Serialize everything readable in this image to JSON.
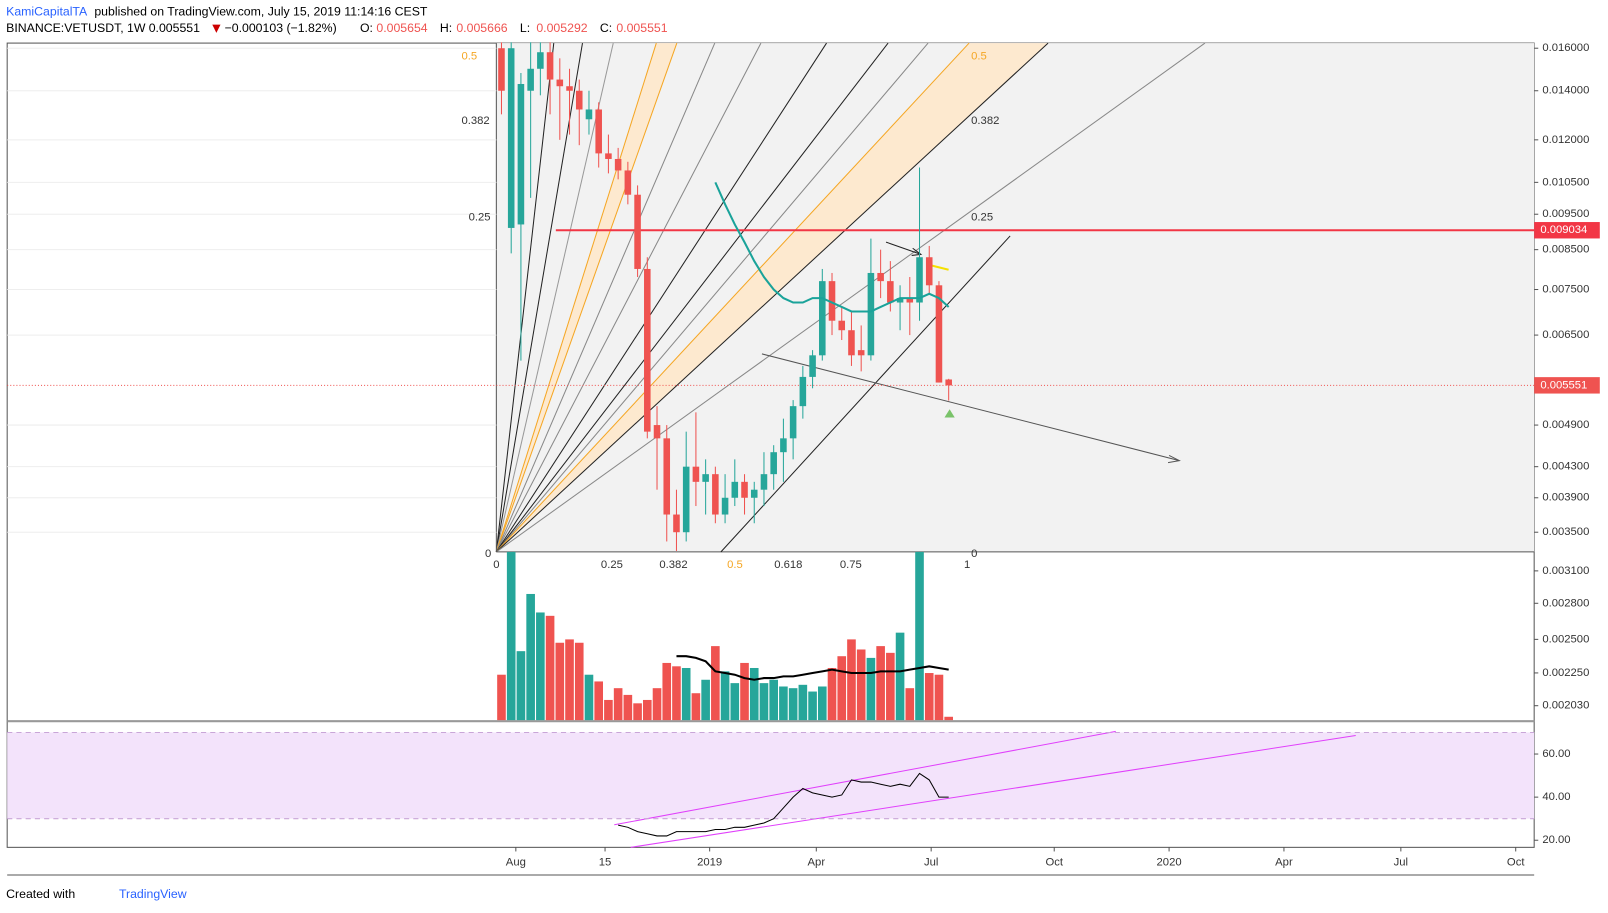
{
  "header": {
    "author": "KamiCapitalTA",
    "published": "published on TradingView.com, July 15, 2019 11:14:16 CEST",
    "symbol": "BINANCE:VETUSDT, 1W",
    "change": "−0.000103 (−1.82%)"
  },
  "footer": {
    "created": "Created with",
    "brand": "TradingView"
  },
  "chart_data": {
    "type": "candlestick",
    "log_scale": true,
    "up_color": "#26a69a",
    "down_color": "#ef5350",
    "candles": [
      [
        0.016,
        0.0163,
        0.013,
        0.014
      ],
      [
        0.0091,
        0.0163,
        0.0084,
        0.016
      ],
      [
        0.0092,
        0.0148,
        0.006,
        0.0143
      ],
      [
        0.014,
        0.0163,
        0.01,
        0.015
      ],
      [
        0.015,
        0.0163,
        0.0138,
        0.0158
      ],
      [
        0.0158,
        0.0163,
        0.013,
        0.0145
      ],
      [
        0.0145,
        0.0155,
        0.012,
        0.0142
      ],
      [
        0.0142,
        0.015,
        0.0122,
        0.014
      ],
      [
        0.014,
        0.0145,
        0.0118,
        0.0132
      ],
      [
        0.0128,
        0.014,
        0.0122,
        0.0132
      ],
      [
        0.0132,
        0.0135,
        0.011,
        0.0115
      ],
      [
        0.0115,
        0.0122,
        0.0108,
        0.0113
      ],
      [
        0.0113,
        0.0117,
        0.0106,
        0.0109
      ],
      [
        0.0109,
        0.0112,
        0.0098,
        0.0101
      ],
      [
        0.0101,
        0.0104,
        0.0078,
        0.008
      ],
      [
        0.008,
        0.0083,
        0.0047,
        0.0048
      ],
      [
        0.0049,
        0.0052,
        0.004,
        0.0047
      ],
      [
        0.0047,
        0.0049,
        0.0034,
        0.0037
      ],
      [
        0.0037,
        0.004,
        0.0033,
        0.0035
      ],
      [
        0.0035,
        0.0048,
        0.0034,
        0.0043
      ],
      [
        0.0043,
        0.0051,
        0.0038,
        0.0041
      ],
      [
        0.0041,
        0.0044,
        0.0037,
        0.0042
      ],
      [
        0.0042,
        0.0043,
        0.0036,
        0.0037
      ],
      [
        0.0037,
        0.0042,
        0.0036,
        0.0039
      ],
      [
        0.0039,
        0.0044,
        0.0038,
        0.0041
      ],
      [
        0.0041,
        0.0042,
        0.0037,
        0.0039
      ],
      [
        0.0039,
        0.0041,
        0.0036,
        0.004
      ],
      [
        0.004,
        0.0045,
        0.0038,
        0.0042
      ],
      [
        0.0042,
        0.0046,
        0.004,
        0.0045
      ],
      [
        0.0045,
        0.005,
        0.0041,
        0.0047
      ],
      [
        0.0047,
        0.0053,
        0.0044,
        0.0052
      ],
      [
        0.0052,
        0.0059,
        0.005,
        0.0057
      ],
      [
        0.0057,
        0.0062,
        0.0055,
        0.0061
      ],
      [
        0.0061,
        0.008,
        0.006,
        0.0077
      ],
      [
        0.0077,
        0.0079,
        0.0065,
        0.0068
      ],
      [
        0.0068,
        0.0071,
        0.0064,
        0.0066
      ],
      [
        0.0066,
        0.007,
        0.0059,
        0.0061
      ],
      [
        0.0062,
        0.0067,
        0.0058,
        0.0061
      ],
      [
        0.0061,
        0.0088,
        0.006,
        0.0079
      ],
      [
        0.0079,
        0.0085,
        0.0073,
        0.0077
      ],
      [
        0.0077,
        0.0082,
        0.007,
        0.0072
      ],
      [
        0.0072,
        0.0076,
        0.0066,
        0.0073
      ],
      [
        0.0073,
        0.0078,
        0.0065,
        0.0072
      ],
      [
        0.0072,
        0.011,
        0.0068,
        0.0083
      ],
      [
        0.0083,
        0.0086,
        0.0074,
        0.0076
      ],
      [
        0.0076,
        0.0077,
        0.0056,
        0.0056
      ],
      [
        0.005654,
        0.005666,
        0.005292,
        0.005551
      ]
    ],
    "ma": [
      null,
      null,
      null,
      null,
      null,
      null,
      null,
      null,
      null,
      null,
      null,
      null,
      null,
      null,
      null,
      null,
      null,
      null,
      null,
      null,
      null,
      null,
      0.0105,
      0.0098,
      0.0092,
      0.0087,
      0.0082,
      0.0078,
      0.0075,
      0.0073,
      0.0072,
      0.0072,
      0.0073,
      0.0073,
      0.0072,
      0.0071,
      0.007,
      0.007,
      0.007,
      0.0071,
      0.0072,
      0.0073,
      0.0073,
      0.0073,
      0.0074,
      0.0073,
      0.0071
    ],
    "ma_color": "#1aa39a",
    "hline": 0.009034,
    "hline_color": "#f23645",
    "ylim": [
      0.00194,
      0.01626
    ],
    "yticks": [
      {
        "value": 0.016,
        "label": "0.016000"
      },
      {
        "value": 0.014,
        "label": "0.014000"
      },
      {
        "value": 0.012,
        "label": "0.012000"
      },
      {
        "value": 0.0105,
        "label": "0.010500"
      },
      {
        "value": 0.0095,
        "label": "0.009500"
      },
      {
        "value": 0.0085,
        "label": "0.008500"
      },
      {
        "value": 0.0075,
        "label": "0.007500"
      },
      {
        "value": 0.0065,
        "label": "0.006500"
      },
      {
        "value": 0.0049,
        "label": "0.004900"
      },
      {
        "value": 0.0043,
        "label": "0.004300"
      },
      {
        "value": 0.0039,
        "label": "0.003900"
      },
      {
        "value": 0.0035,
        "label": "0.003500"
      },
      {
        "value": 0.0031,
        "label": "0.003100"
      },
      {
        "value": 0.0028,
        "label": "0.002800"
      },
      {
        "value": 0.0025,
        "label": "0.002500"
      },
      {
        "value": 0.00225,
        "label": "0.002250"
      },
      {
        "value": 0.00203,
        "label": "0.002030"
      }
    ],
    "volume": [
      27,
      100,
      41,
      75,
      64,
      62,
      46,
      48,
      46,
      27,
      23,
      12,
      19,
      15,
      10,
      12,
      19,
      34,
      32,
      31,
      16,
      24,
      44,
      29,
      22,
      34,
      31,
      22,
      24,
      20,
      19,
      21,
      17,
      20,
      31,
      38,
      48,
      42,
      37,
      44,
      40,
      52,
      19,
      100,
      28,
      27,
      2
    ],
    "volume_ma": [
      null,
      null,
      null,
      null,
      null,
      null,
      null,
      null,
      null,
      null,
      null,
      null,
      null,
      null,
      null,
      null,
      null,
      null,
      38,
      38,
      37,
      35,
      29,
      28,
      27,
      25,
      24,
      25,
      25,
      26,
      26,
      27,
      28,
      29,
      30,
      29,
      28,
      28,
      28,
      29,
      29,
      29,
      30,
      31,
      32,
      31,
      30
    ],
    "volume_lim": [
      0,
      100
    ],
    "xticks": [
      "Aug",
      "15",
      "2019",
      "Apr",
      "Jul",
      "Oct",
      "2020",
      "Apr",
      "Jul",
      "Oct"
    ],
    "rsi": [
      null,
      null,
      null,
      null,
      null,
      null,
      null,
      null,
      null,
      null,
      null,
      null,
      27,
      26,
      24,
      23,
      22,
      22,
      24,
      24,
      24,
      24,
      25,
      25,
      26,
      26,
      27,
      28,
      30,
      35,
      40,
      44,
      42,
      41,
      40,
      41,
      48,
      47,
      47,
      46,
      45,
      46,
      45,
      51,
      48,
      40,
      40
    ],
    "rsi_lim": [
      16.7,
      74.3
    ],
    "rsi_band": [
      30,
      70
    ],
    "rsi_ticks": [
      {
        "value": 20,
        "label": "20.00"
      },
      {
        "value": 40,
        "label": "40.00"
      },
      {
        "value": 60,
        "label": "60.00"
      }
    ],
    "fib_left": [
      "0.5",
      "0.382",
      "0.25",
      "0"
    ],
    "fib_right": [
      "0.5",
      "0.382",
      "0.25",
      "0"
    ],
    "fib_bottom": [
      "0",
      "0.25",
      "0.382",
      "0.5",
      "0.618",
      "0.75",
      "1"
    ]
  }
}
